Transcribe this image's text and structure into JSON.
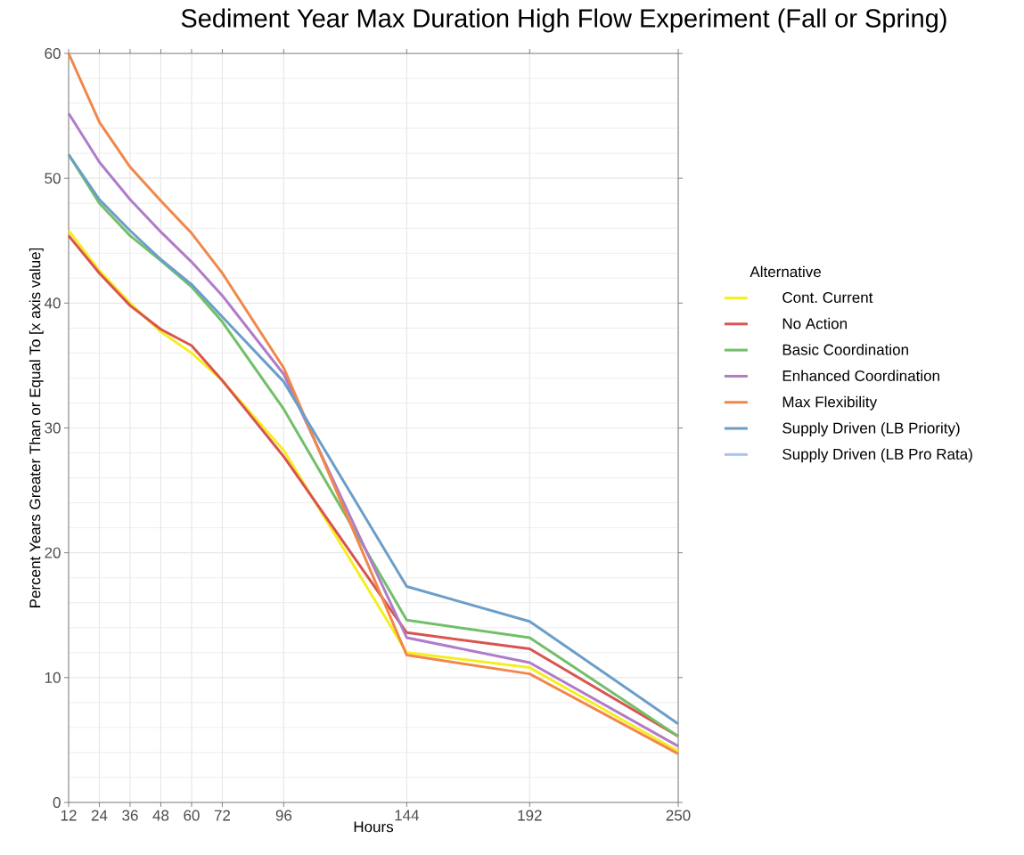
{
  "chart_data": {
    "type": "line",
    "title": "Sediment Year Max Duration High Flow Experiment (Fall or Spring)",
    "xlabel": "Hours",
    "ylabel": "Percent Years Greater Than or Equal To [x axis value]",
    "legend_title": "Alternative",
    "legend": "right",
    "grid": true,
    "line_style": "solid",
    "x": [
      12,
      24,
      36,
      48,
      60,
      72,
      96,
      144,
      192,
      250
    ],
    "xlim": [
      12,
      250
    ],
    "xticks": [
      12,
      24,
      36,
      48,
      60,
      72,
      96,
      144,
      192,
      250
    ],
    "ylim": [
      0,
      60
    ],
    "yticks": [
      0,
      10,
      20,
      30,
      40,
      50,
      60
    ],
    "series": [
      {
        "name": "Cont. Current",
        "color": "#f5ee1f",
        "values": [
          45.8,
          42.6,
          40.0,
          37.7,
          36.0,
          33.8,
          28.2,
          12.0,
          10.8,
          4.1
        ]
      },
      {
        "name": "No Action",
        "color": "#d9544f",
        "values": [
          45.4,
          42.4,
          39.8,
          37.9,
          36.6,
          33.8,
          27.7,
          13.6,
          12.3,
          5.3
        ]
      },
      {
        "name": "Basic Coordination",
        "color": "#72bf6a",
        "values": [
          51.9,
          48.0,
          45.4,
          43.4,
          41.3,
          38.5,
          31.5,
          14.6,
          13.2,
          5.3
        ]
      },
      {
        "name": "Enhanced Coordination",
        "color": "#b07cc9",
        "values": [
          55.2,
          51.3,
          48.3,
          45.7,
          43.3,
          40.6,
          34.3,
          13.2,
          11.2,
          4.5
        ]
      },
      {
        "name": "Max Flexibility",
        "color": "#f0884a",
        "values": [
          60.0,
          54.5,
          50.9,
          48.2,
          45.6,
          42.4,
          34.8,
          11.8,
          10.3,
          3.9
        ]
      },
      {
        "name": "Supply Driven (LB Priority)",
        "color": "#6b9ec8",
        "values": [
          51.9,
          48.3,
          45.8,
          43.5,
          41.5,
          38.9,
          33.7,
          17.3,
          14.5,
          6.3
        ]
      },
      {
        "name": "Supply Driven (LB Pro Rata)",
        "color": "#a6c7e5",
        "values": [
          null,
          null,
          null,
          null,
          null,
          null,
          null,
          null,
          null,
          null
        ]
      }
    ]
  }
}
